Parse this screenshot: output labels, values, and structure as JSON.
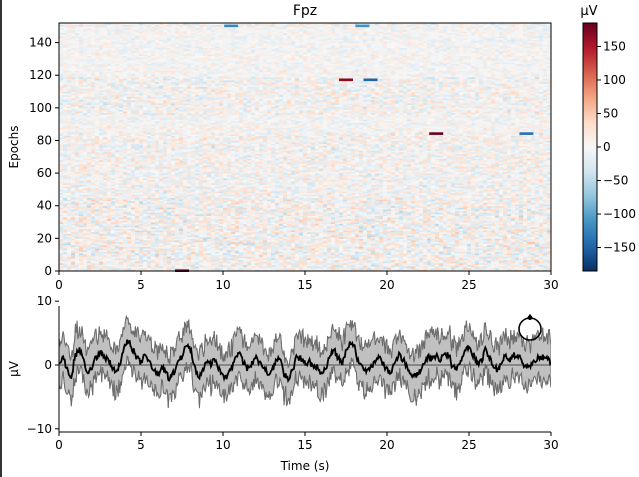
{
  "chart_data": [
    {
      "type": "heatmap",
      "title": "Fpz",
      "ylabel": "Epochs",
      "xlim": [
        0,
        30
      ],
      "ylim": [
        0,
        152
      ],
      "x_ticks": [
        "0",
        "5",
        "10",
        "15",
        "20",
        "25",
        "30"
      ],
      "y_ticks": [
        "0",
        "20",
        "40",
        "60",
        "80",
        "100",
        "120",
        "140"
      ],
      "n_epochs": 152,
      "colormap": [
        "#053061",
        "#2166ac",
        "#4393c3",
        "#92c5de",
        "#d1e5f0",
        "#f7f7f7",
        "#fddbc7",
        "#f4a582",
        "#d6604d",
        "#b2182b",
        "#67001f"
      ],
      "colorbar": {
        "label": "µV",
        "vmin": -185,
        "vmax": 185,
        "ticks": [
          "150",
          "100",
          "50",
          "0",
          "−50",
          "−100",
          "−150"
        ],
        "tick_values": [
          150,
          100,
          50,
          0,
          -50,
          -100,
          -150
        ]
      },
      "highlights": [
        {
          "epoch": 117,
          "x": 17.5,
          "value": 170
        },
        {
          "epoch": 117,
          "x": 19.0,
          "value": -150
        },
        {
          "epoch": 84,
          "x": 23.0,
          "value": 185
        },
        {
          "epoch": 84,
          "x": 28.5,
          "value": -140
        },
        {
          "epoch": 0,
          "x": 7.5,
          "value": 185
        },
        {
          "epoch": 150,
          "x": 10.5,
          "value": -120
        },
        {
          "epoch": 150,
          "x": 18.5,
          "value": -110
        }
      ]
    },
    {
      "type": "line",
      "xlabel": "Time (s)",
      "ylabel": "µV",
      "xlim": [
        0,
        30
      ],
      "ylim": [
        -10.5,
        10.5
      ],
      "x_ticks": [
        "0",
        "5",
        "10",
        "15",
        "20",
        "25",
        "30"
      ],
      "y_ticks": [
        "10",
        "0",
        "−10"
      ],
      "y_tick_values": [
        10,
        0,
        -10
      ],
      "series": [
        {
          "role": "mean",
          "color": "#000000",
          "y": [
            0.3,
            1.2,
            -0.8,
            -2.0,
            1.5,
            2.5,
            0.5,
            -1.5,
            -0.5,
            1.0,
            2.0,
            1.2,
            0.8,
            -0.5,
            -1.0,
            0.5,
            3.2,
            3.8,
            2.4,
            1.0,
            0.5,
            1.8,
            0.8,
            -0.8,
            -1.5,
            -0.5,
            -1.0,
            -2.2,
            -1.2,
            0.6,
            1.2,
            3.4,
            2.6,
            -0.4,
            -2.0,
            -0.8,
            0.5,
            0.2,
            0.8,
            -0.6,
            -1.8,
            -1.8,
            -0.4,
            1.1,
            1.8,
            0.4,
            -0.6,
            0.2,
            1.0,
            0.3,
            -0.2,
            -1.4,
            -0.8,
            0.7,
            0.9,
            -1.4,
            -2.2,
            -0.8,
            1.2,
            0.9,
            0.3,
            0.5,
            -0.4,
            -0.2,
            -1.1,
            -0.4,
            1.4,
            2.3,
            1.2,
            0.2,
            2.0,
            3.6,
            2.8,
            0.8,
            -0.2,
            -1.2,
            -0.4,
            0.4,
            1.1,
            0.2,
            -0.8,
            -1.2,
            0.6,
            1.5,
            0.8,
            -0.4,
            -1.5,
            -1.7,
            -1.1,
            0.1,
            1.3,
            1.0,
            1.4,
            0.8,
            1.9,
            1.6,
            -0.2,
            -0.6,
            0.6,
            2.4,
            2.8,
            1.6,
            0.4,
            0.6,
            2.6,
            1.0,
            -0.2,
            -0.8,
            0.4,
            1.6,
            0.8,
            1.6,
            1.4,
            0.4,
            -0.5,
            -0.2,
            0.6,
            1.1,
            1.4,
            0.9,
            0.6
          ]
        },
        {
          "role": "sem-band",
          "color": "#888888",
          "offset": 2.8
        }
      ],
      "head_icon": "head-outline-icon"
    }
  ]
}
